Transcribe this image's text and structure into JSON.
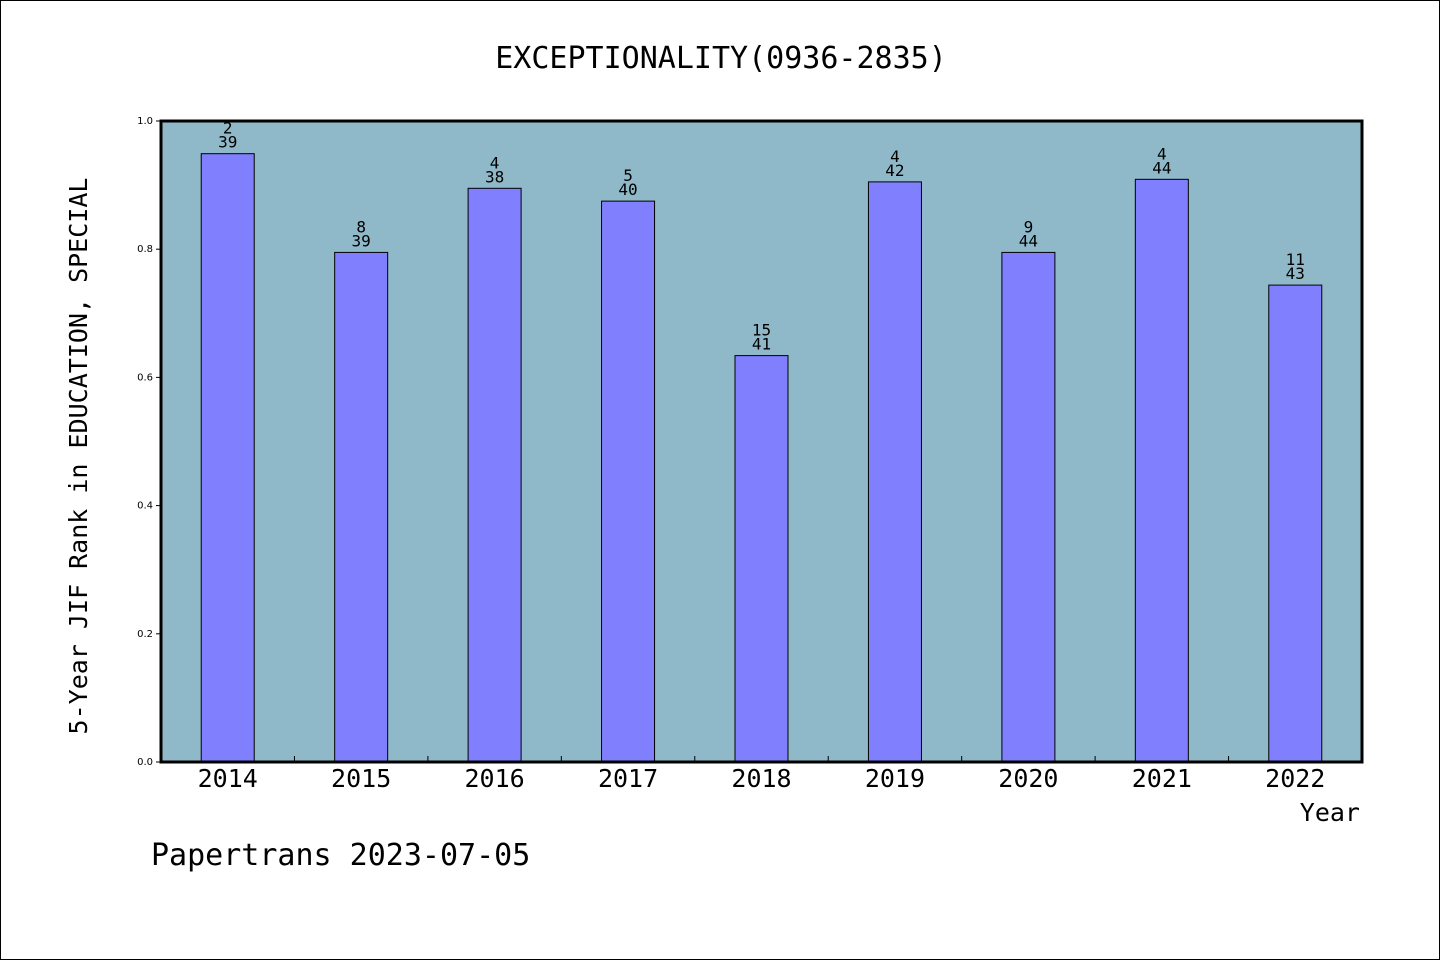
{
  "footer": "Papertrans 2023-07-05",
  "colors": {
    "plot_background": "#8fb8c8",
    "bar_fill": "#8080ff",
    "bar_stroke": "#000000",
    "page_background": "#ffffff"
  },
  "chart_data": {
    "type": "bar",
    "title": "EXCEPTIONALITY(0936-2835)",
    "xlabel": "Year",
    "ylabel": "5-Year JIF Rank in EDUCATION, SPECIAL",
    "ylim": [
      0,
      1.0
    ],
    "yticks": [
      "0.0",
      "0.2",
      "0.4",
      "0.6",
      "0.8",
      "1.0"
    ],
    "grid": false,
    "legend": "none",
    "categories": [
      "2014",
      "2015",
      "2016",
      "2017",
      "2018",
      "2019",
      "2020",
      "2021",
      "2022"
    ],
    "values": [
      0.949,
      0.795,
      0.895,
      0.875,
      0.634,
      0.905,
      0.795,
      0.909,
      0.744
    ],
    "rank": [
      "2",
      "8",
      "4",
      "5",
      "15",
      "4",
      "9",
      "4",
      "11"
    ],
    "total": [
      "39",
      "39",
      "38",
      "40",
      "41",
      "42",
      "44",
      "44",
      "43"
    ]
  }
}
